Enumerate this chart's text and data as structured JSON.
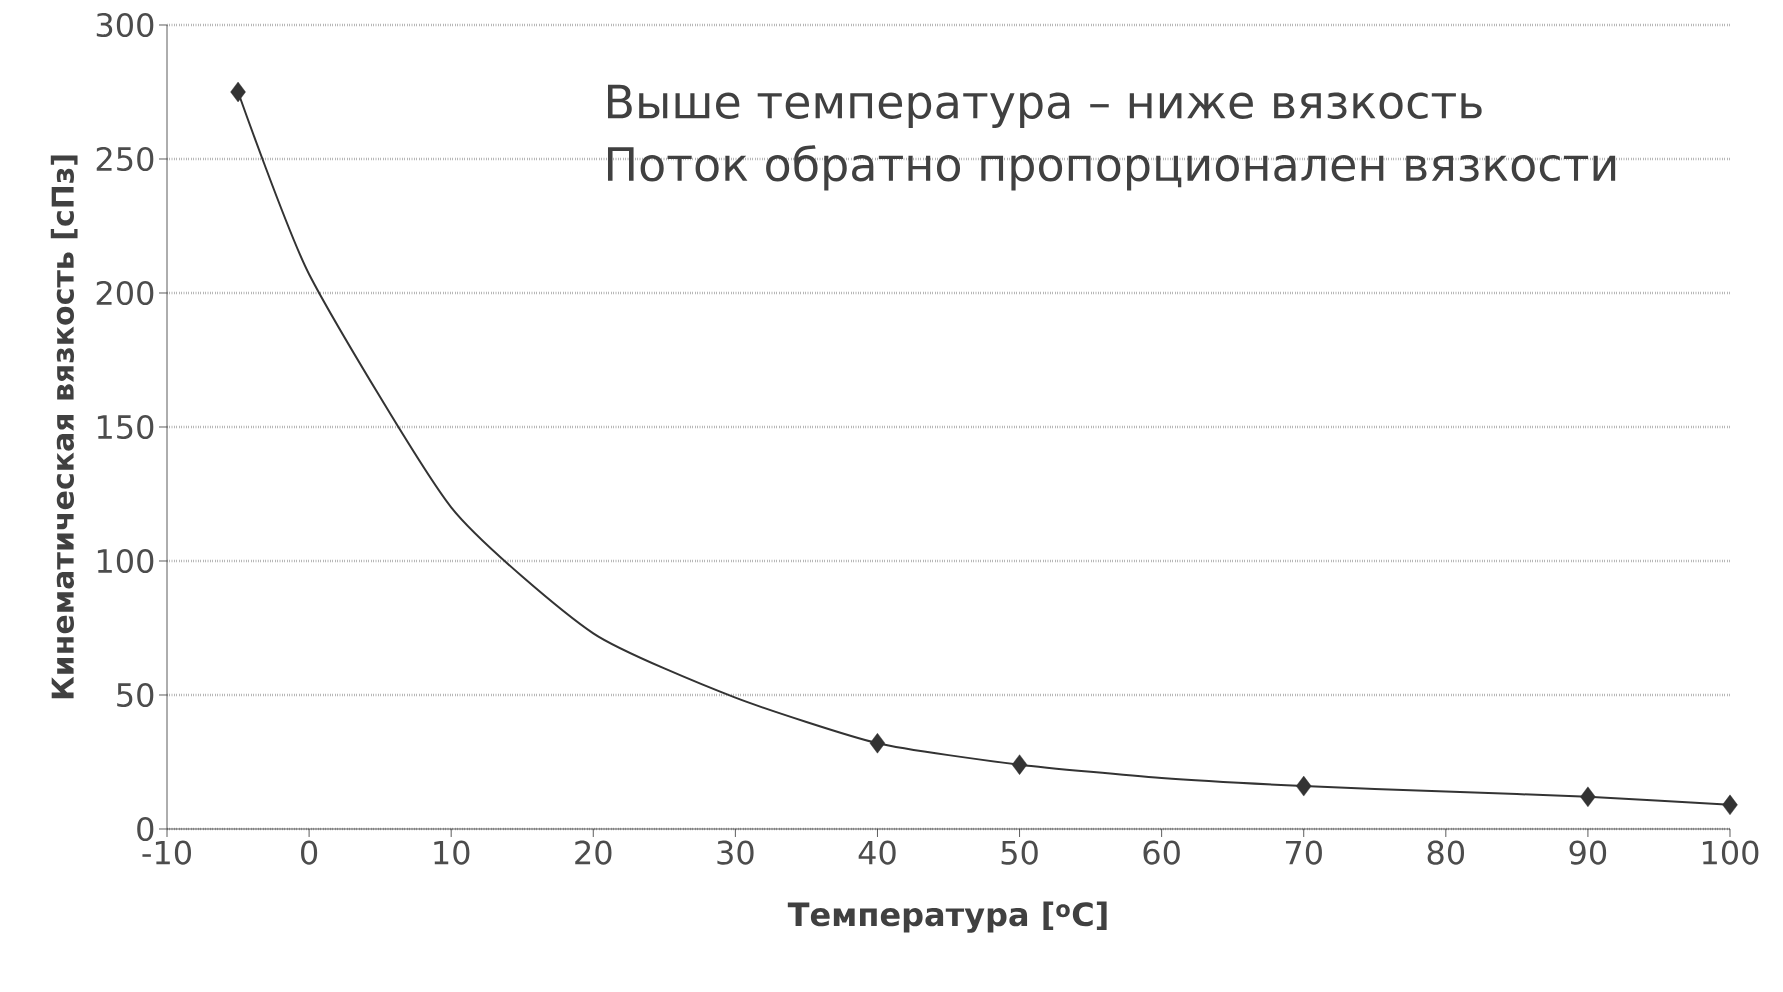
{
  "chart_data": {
    "type": "line",
    "xlabel": "Температура [$^{o}$C]",
    "ylabel": "Кинематическая вязкость [сПз]",
    "annotations": [
      "Выше температура – ниже вязкость",
      "Поток обратно пропорционален вязкости"
    ],
    "series": [
      {
        "color": "#333333",
        "marker": "none",
        "x": [
          -5,
          0,
          10,
          20,
          30,
          40,
          50,
          60,
          70,
          80,
          90,
          100
        ],
        "values": [
          275,
          207,
          120,
          73,
          49,
          32,
          24,
          19,
          16,
          14,
          12,
          9
        ]
      },
      {
        "type": "scatter",
        "color": "#333333",
        "marker": "diamond",
        "x": [
          -5,
          40,
          50,
          70,
          90,
          100
        ],
        "values": [
          275,
          32,
          24,
          16,
          12,
          9
        ]
      }
    ],
    "xlim": [
      -10,
      100
    ],
    "ylim": [
      0,
      300
    ],
    "xticks": [
      -10,
      0,
      10,
      20,
      30,
      40,
      50,
      60,
      70,
      80,
      90,
      100
    ],
    "yticks": [
      0,
      50,
      100,
      150,
      200,
      250,
      300
    ],
    "grid": "y"
  }
}
